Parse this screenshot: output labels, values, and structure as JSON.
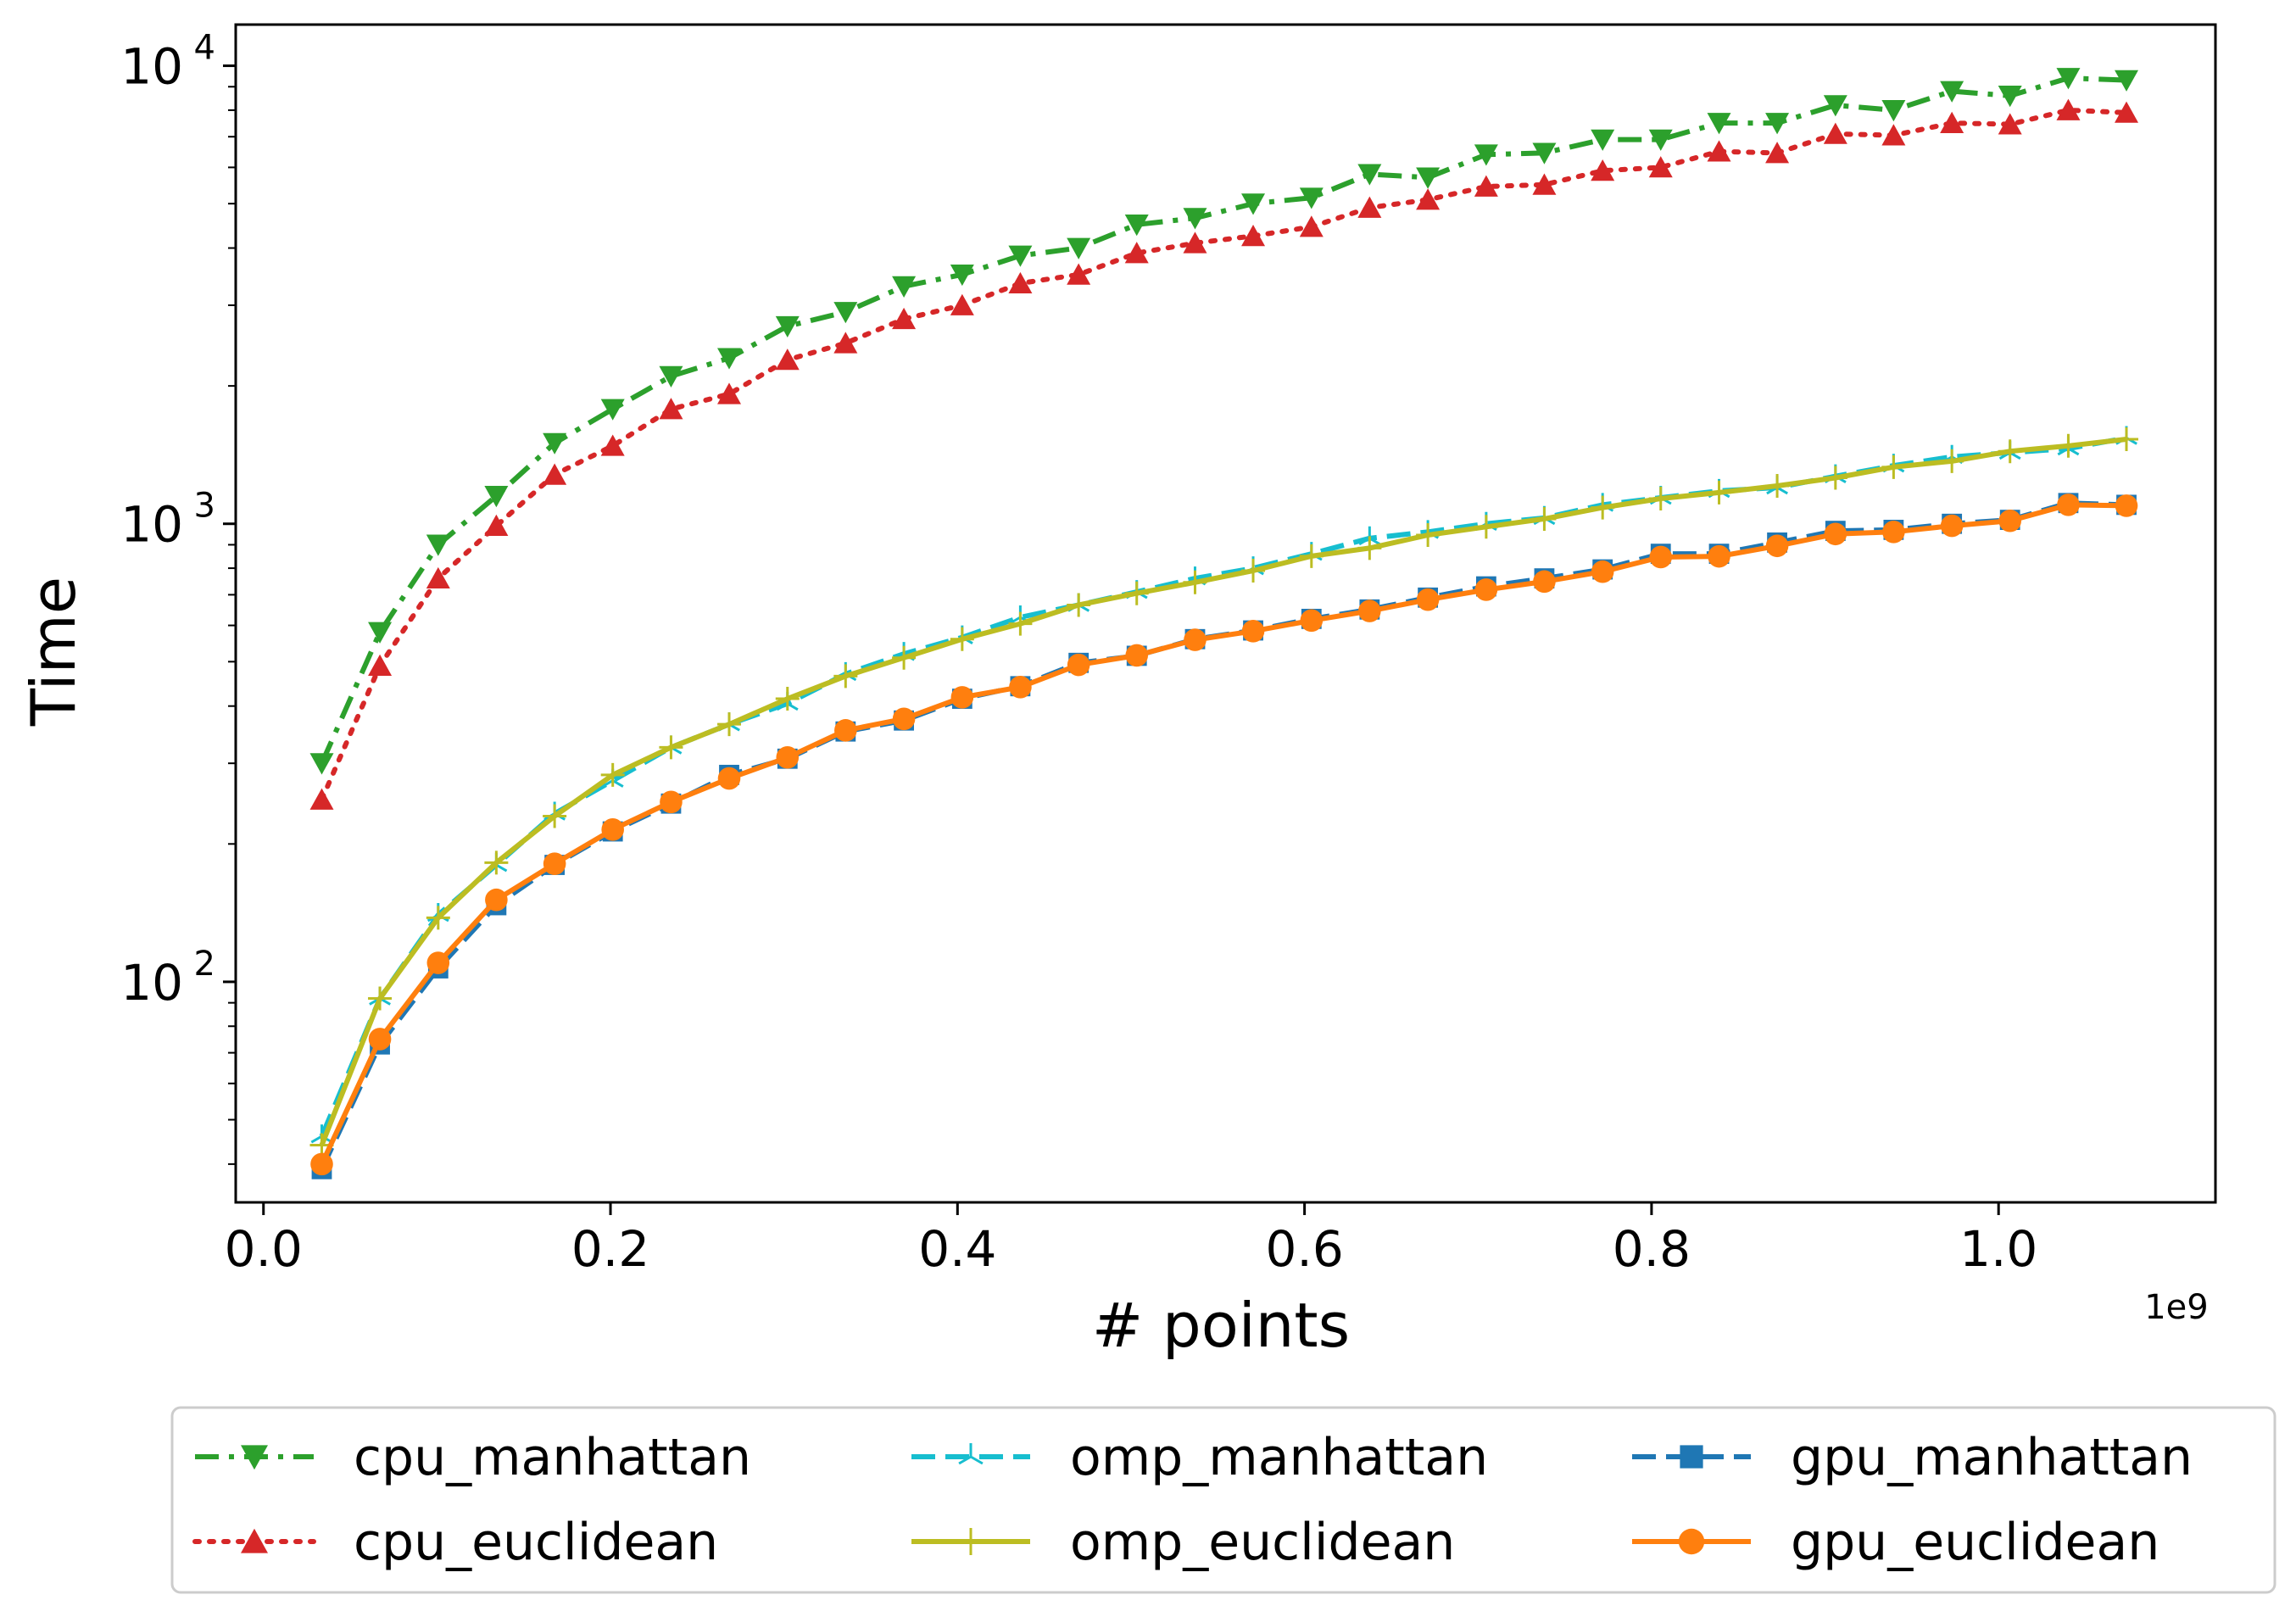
{
  "chart_data": {
    "type": "line",
    "title": "",
    "xlabel": "# points",
    "ylabel": "Time",
    "x_offset_label": "1e9",
    "xscale": "linear",
    "yscale": "log",
    "xlim": [
      -0.016,
      1.125
    ],
    "ylim": [
      33,
      12300
    ],
    "xticks": [
      0.0,
      0.2,
      0.4,
      0.6,
      0.8,
      1.0
    ],
    "xtick_labels": [
      "0.0",
      "0.2",
      "0.4",
      "0.6",
      "0.8",
      "1.0"
    ],
    "yticks": [
      100,
      1000,
      10000
    ],
    "ytick_labels": [
      {
        "base": "10",
        "exp": "2"
      },
      {
        "base": "10",
        "exp": "3"
      },
      {
        "base": "10",
        "exp": "4"
      }
    ],
    "grid": false,
    "legend_position": "bottom-center, outside plot",
    "x": [
      0.0336,
      0.0671,
      0.1007,
      0.1342,
      0.1678,
      0.2013,
      0.2349,
      0.2684,
      0.302,
      0.3355,
      0.3691,
      0.4027,
      0.4362,
      0.4698,
      0.5033,
      0.5369,
      0.5704,
      0.604,
      0.6375,
      0.6711,
      0.7047,
      0.7382,
      0.7718,
      0.8053,
      0.8389,
      0.8724,
      0.906,
      0.9395,
      0.9731,
      1.0066,
      1.0402,
      1.0737
    ],
    "series": [
      {
        "name": "cpu_manhattan",
        "color": "#2ca02c",
        "marker": "triangle-down",
        "dash": "dashdot",
        "values": [
          300,
          580,
          900,
          1150,
          1500,
          1780,
          2100,
          2300,
          2700,
          2900,
          3300,
          3500,
          3850,
          4000,
          4500,
          4650,
          5000,
          5150,
          5800,
          5700,
          6400,
          6450,
          6900,
          6900,
          7500,
          7500,
          8200,
          8000,
          8800,
          8600,
          9400,
          9300
        ]
      },
      {
        "name": "cpu_euclidean",
        "color": "#d62728",
        "marker": "triangle-up",
        "dash": "dotted",
        "values": [
          250,
          490,
          760,
          990,
          1280,
          1480,
          1780,
          1920,
          2280,
          2480,
          2800,
          3000,
          3350,
          3500,
          3900,
          4100,
          4250,
          4450,
          4900,
          5100,
          5450,
          5500,
          5900,
          6000,
          6500,
          6450,
          7100,
          7050,
          7500,
          7450,
          8000,
          7900
        ]
      },
      {
        "name": "omp_manhattan",
        "color": "#17becf",
        "marker": "tri",
        "dash": "dashed",
        "values": [
          46,
          92,
          140,
          180,
          233,
          275,
          325,
          365,
          405,
          470,
          520,
          565,
          625,
          665,
          710,
          760,
          800,
          860,
          930,
          960,
          1000,
          1030,
          1100,
          1140,
          1180,
          1200,
          1270,
          1340,
          1400,
          1430,
          1460,
          1540
        ]
      },
      {
        "name": "omp_euclidean",
        "color": "#bcbd22",
        "marker": "plus",
        "dash": "solid",
        "values": [
          44,
          92,
          138,
          182,
          230,
          283,
          325,
          365,
          415,
          465,
          510,
          560,
          605,
          665,
          705,
          745,
          790,
          850,
          885,
          945,
          985,
          1025,
          1085,
          1135,
          1170,
          1210,
          1260,
          1330,
          1370,
          1440,
          1480,
          1530
        ]
      },
      {
        "name": "gpu_manhattan",
        "color": "#1f77b4",
        "marker": "square",
        "dash": "dashed",
        "values": [
          39,
          73,
          107,
          147,
          180,
          213,
          245,
          283,
          307,
          352,
          372,
          415,
          442,
          497,
          515,
          560,
          585,
          620,
          650,
          690,
          730,
          760,
          795,
          860,
          860,
          910,
          965,
          970,
          1000,
          1020,
          1110,
          1100
        ]
      },
      {
        "name": "gpu_euclidean",
        "color": "#ff7f0e",
        "marker": "circle",
        "dash": "solid",
        "values": [
          40,
          75,
          110,
          151,
          181,
          215,
          247,
          278,
          309,
          354,
          375,
          418,
          440,
          492,
          516,
          558,
          583,
          615,
          645,
          683,
          718,
          748,
          786,
          846,
          849,
          895,
          950,
          960,
          990,
          1015,
          1100,
          1095
        ]
      }
    ]
  }
}
